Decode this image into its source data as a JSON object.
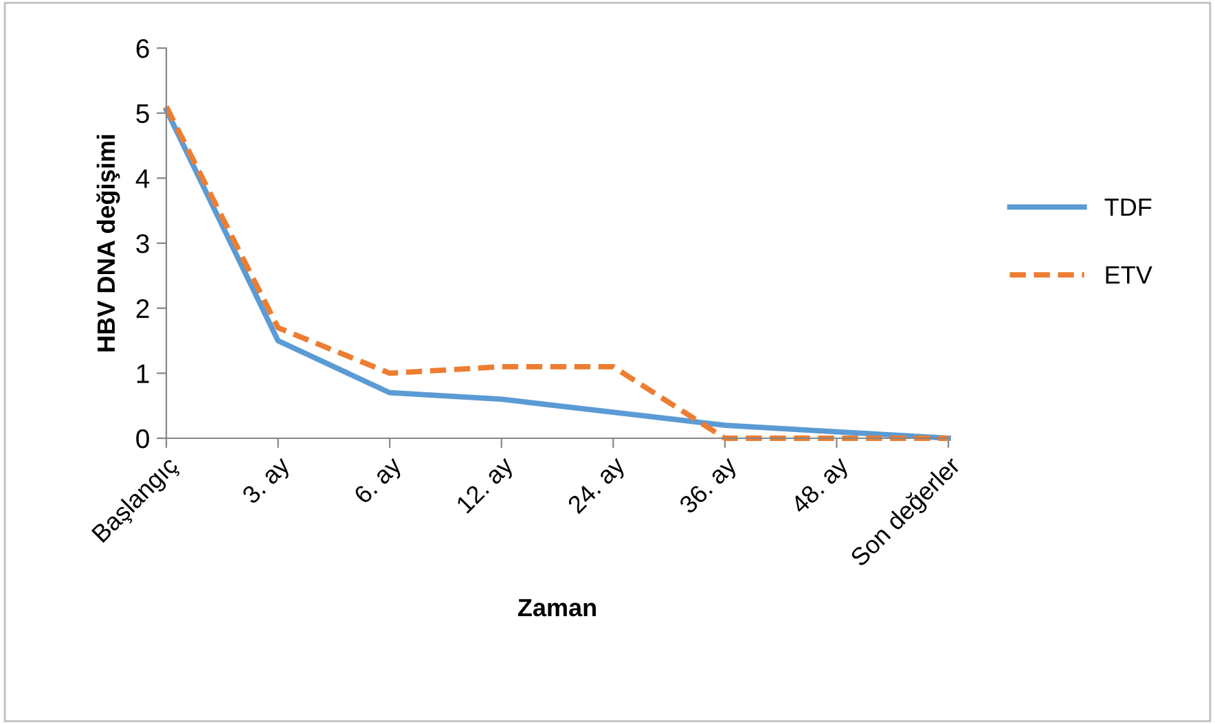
{
  "chart_data": {
    "type": "line",
    "xlabel": "Zaman",
    "ylabel": "HBV DNA değişimi",
    "categories": [
      "Başlangıç",
      "3. ay",
      "6. ay",
      "12. ay",
      "24. ay",
      "36. ay",
      "48. ay",
      "Son değerler"
    ],
    "series": [
      {
        "name": "TDF",
        "color": "#5b9bd5",
        "line_style": "solid",
        "values": [
          5.05,
          1.5,
          0.7,
          0.6,
          0.4,
          0.2,
          0.1,
          0
        ]
      },
      {
        "name": "ETV",
        "color": "#ed7d31",
        "line_style": "dashed",
        "values": [
          5.1,
          1.7,
          1.0,
          1.1,
          1.1,
          0,
          0,
          0
        ]
      }
    ],
    "ylim": [
      0,
      6
    ],
    "yticks": [
      0,
      1,
      2,
      3,
      4,
      5,
      6
    ],
    "grid": false,
    "legend": "right",
    "marker": "none"
  }
}
